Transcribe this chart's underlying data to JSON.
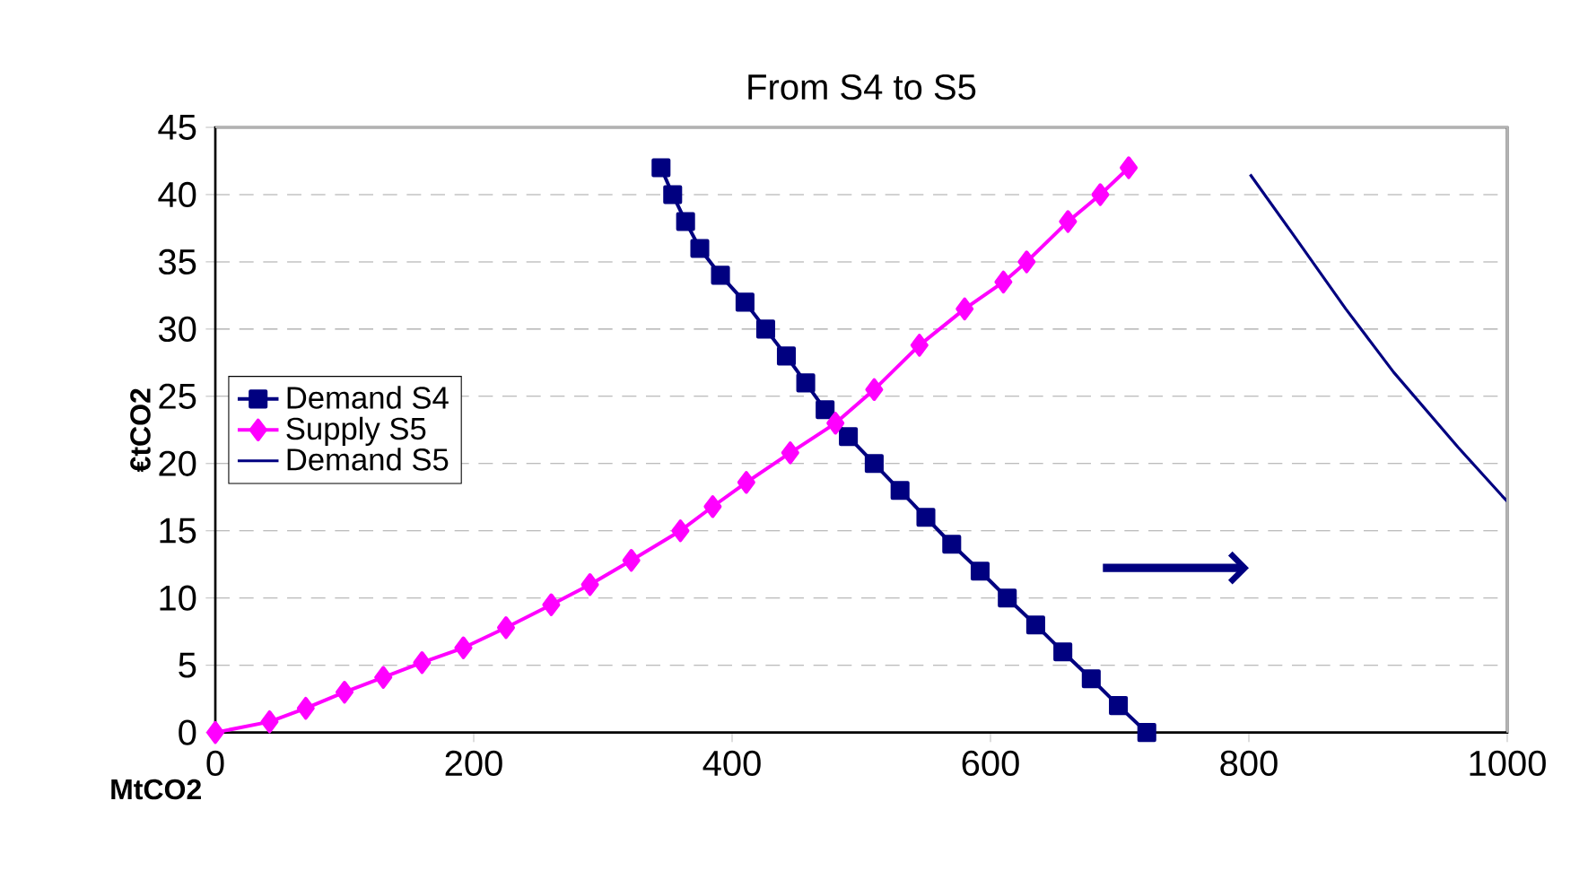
{
  "chart_data": {
    "type": "line",
    "title": "From S4 to S5",
    "xlabel": "MtCO2",
    "ylabel": "€tCO2",
    "xlim": [
      0,
      1000
    ],
    "xticks": [
      0,
      200,
      400,
      600,
      800,
      1000
    ],
    "ylim": [
      0,
      45
    ],
    "yticks": [
      0,
      5,
      10,
      15,
      20,
      25,
      30,
      35,
      40,
      45
    ],
    "grid": "y",
    "legend": "left",
    "series": [
      {
        "name": "Demand S4",
        "color": "#000080",
        "marker": "square",
        "x": [
          345,
          354,
          364,
          375,
          391,
          410,
          426,
          442,
          457,
          472,
          490,
          510,
          530,
          550,
          570,
          592,
          613,
          635,
          656,
          678,
          699,
          721
        ],
        "values": [
          42,
          40,
          38,
          36,
          34,
          32,
          30,
          28,
          26,
          24,
          22,
          20,
          18,
          16,
          14,
          12,
          10,
          8,
          6,
          4,
          2,
          0
        ]
      },
      {
        "name": "Supply S5",
        "color": "#ff00ff",
        "marker": "diamond",
        "x": [
          0,
          42,
          70,
          100,
          130,
          160,
          192,
          225,
          260,
          290,
          322,
          360,
          385,
          411,
          445,
          480,
          510,
          545,
          580,
          610,
          628,
          660,
          685,
          707
        ],
        "values": [
          0,
          0.8,
          1.8,
          3,
          4.1,
          5.2,
          6.3,
          7.8,
          9.5,
          11,
          12.8,
          15,
          16.8,
          18.6,
          20.8,
          23,
          25.5,
          28.8,
          31.5,
          33.5,
          35,
          38,
          40,
          42
        ]
      },
      {
        "name": "Demand S5",
        "color": "#000080",
        "marker": "none",
        "x": [
          801,
          833,
          875,
          912,
          962,
          996,
          1000
        ],
        "values": [
          41.5,
          37.2,
          31.5,
          26.8,
          21.2,
          17.6,
          17.2
        ]
      }
    ]
  }
}
